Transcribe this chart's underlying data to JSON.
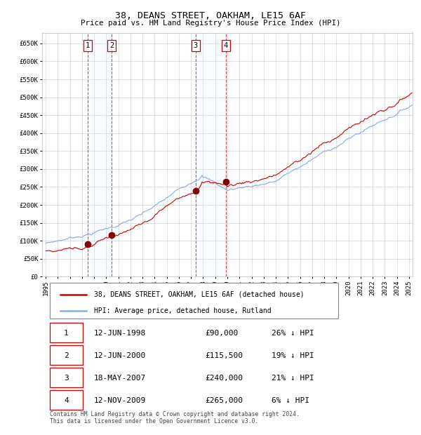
{
  "title": "38, DEANS STREET, OAKHAM, LE15 6AF",
  "subtitle": "Price paid vs. HM Land Registry's House Price Index (HPI)",
  "hpi_label": "HPI: Average price, detached house, Rutland",
  "property_label": "38, DEANS STREET, OAKHAM, LE15 6AF (detached house)",
  "transactions": [
    {
      "num": 1,
      "date_str": "12-JUN-1998",
      "price": 90000,
      "pct": "26% ↓ HPI",
      "date_x": 1998.45
    },
    {
      "num": 2,
      "date_str": "12-JUN-2000",
      "price": 115500,
      "pct": "19% ↓ HPI",
      "date_x": 2000.45
    },
    {
      "num": 3,
      "date_str": "18-MAY-2007",
      "price": 240000,
      "pct": "21% ↓ HPI",
      "date_x": 2007.37
    },
    {
      "num": 4,
      "date_str": "12-NOV-2009",
      "price": 265000,
      "pct": "6% ↓ HPI",
      "date_x": 2009.87
    }
  ],
  "ylim": [
    0,
    680000
  ],
  "xlim": [
    1994.7,
    2025.3
  ],
  "yticks": [
    0,
    50000,
    100000,
    150000,
    200000,
    250000,
    300000,
    350000,
    400000,
    450000,
    500000,
    550000,
    600000,
    650000
  ],
  "ytick_labels": [
    "£0",
    "£50K",
    "£100K",
    "£150K",
    "£200K",
    "£250K",
    "£300K",
    "£350K",
    "£400K",
    "£450K",
    "£500K",
    "£550K",
    "£600K",
    "£650K"
  ],
  "xticks": [
    1995,
    1996,
    1997,
    1998,
    1999,
    2000,
    2001,
    2002,
    2003,
    2004,
    2005,
    2006,
    2007,
    2008,
    2009,
    2010,
    2011,
    2012,
    2013,
    2014,
    2015,
    2016,
    2017,
    2018,
    2019,
    2020,
    2021,
    2022,
    2023,
    2024,
    2025
  ],
  "property_color": "#cc0000",
  "hpi_color": "#88aadd",
  "marker_color": "#880000",
  "dashed_color": "#cc3333",
  "shade_color": "#ddeeff",
  "grid_color": "#bbbbbb",
  "bg_color": "#ffffff",
  "box_color": "#cc0000",
  "footnote": "Contains HM Land Registry data © Crown copyright and database right 2024.\nThis data is licensed under the Open Government Licence v3.0."
}
